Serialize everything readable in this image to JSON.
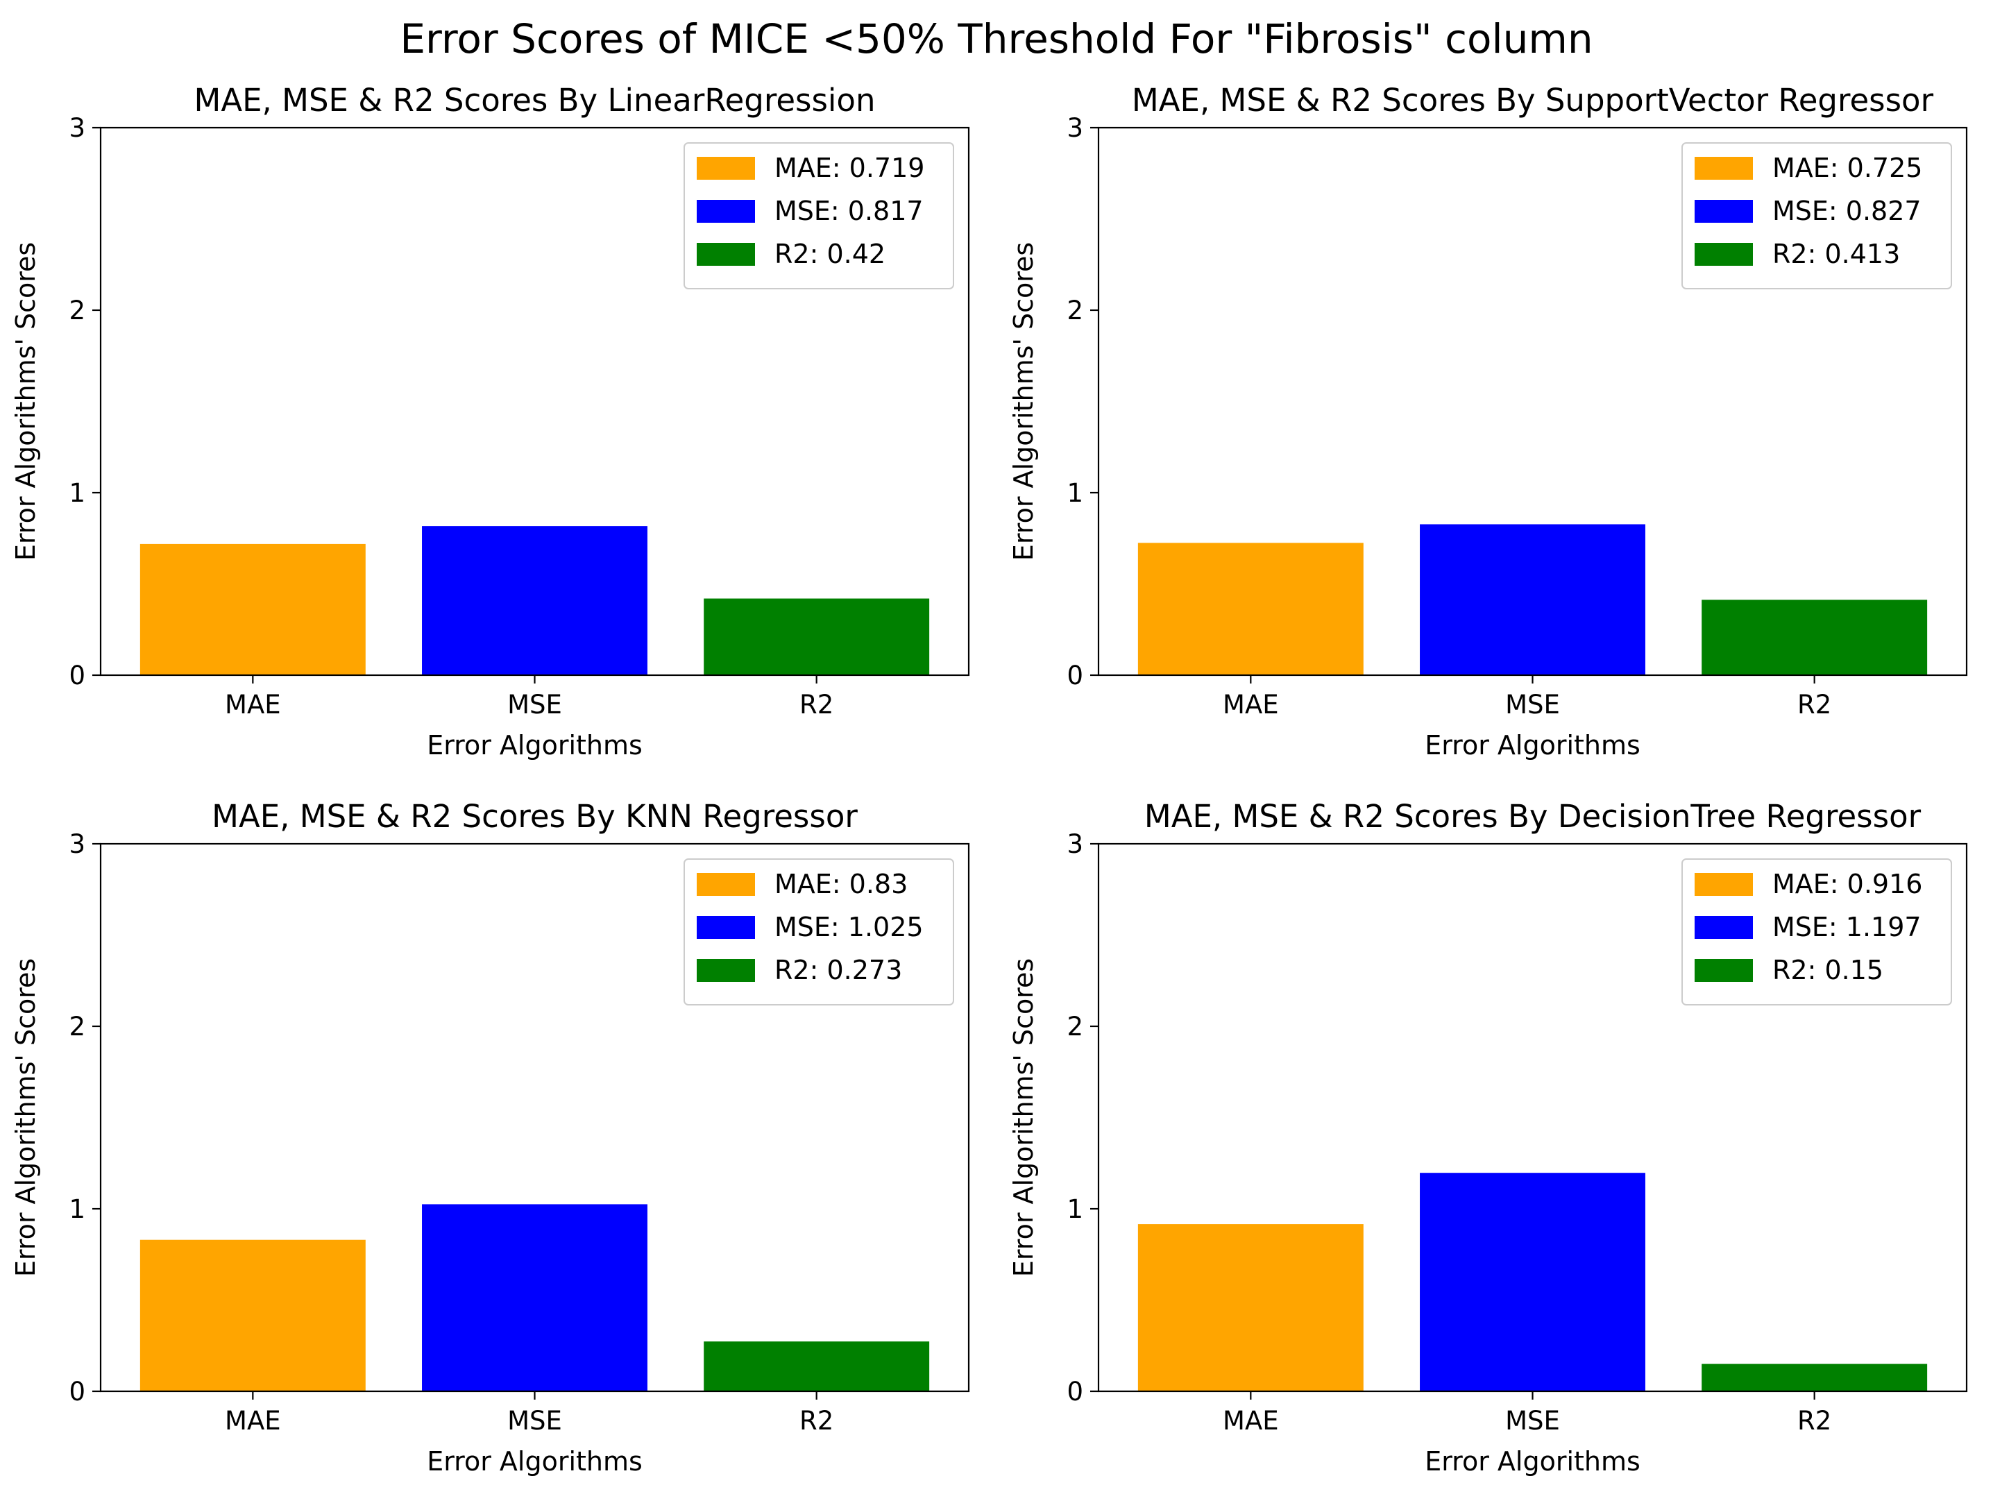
{
  "figure": {
    "title": "Error Scores of MICE <50% Threshold For \"Fibrosis\" column"
  },
  "colors": {
    "MAE": "#ffa500",
    "MSE": "#0000ff",
    "R2": "#008000"
  },
  "chart_data": [
    {
      "type": "bar",
      "title": "MAE, MSE & R2 Scores By LinearRegression",
      "xlabel": "Error Algorithms",
      "ylabel": "Error Algorithms' Scores",
      "categories": [
        "MAE",
        "MSE",
        "R2"
      ],
      "values": [
        0.719,
        0.817,
        0.42
      ],
      "ylim": [
        0,
        3
      ],
      "yticks": [
        "0",
        "1",
        "2",
        "3"
      ],
      "legend": [
        "MAE: 0.719",
        "MSE: 0.817",
        "R2: 0.42"
      ],
      "legend_position": "top-right",
      "grid": false
    },
    {
      "type": "bar",
      "title": "MAE, MSE & R2 Scores By SupportVector Regressor",
      "xlabel": "Error Algorithms",
      "ylabel": "Error Algorithms' Scores",
      "categories": [
        "MAE",
        "MSE",
        "R2"
      ],
      "values": [
        0.725,
        0.827,
        0.413
      ],
      "ylim": [
        0,
        3
      ],
      "yticks": [
        "0",
        "1",
        "2",
        "3"
      ],
      "legend": [
        "MAE: 0.725",
        "MSE: 0.827",
        "R2: 0.413"
      ],
      "legend_position": "top-right",
      "grid": false
    },
    {
      "type": "bar",
      "title": "MAE, MSE & R2 Scores By KNN Regressor",
      "xlabel": "Error Algorithms",
      "ylabel": "Error Algorithms' Scores",
      "categories": [
        "MAE",
        "MSE",
        "R2"
      ],
      "values": [
        0.83,
        1.025,
        0.273
      ],
      "ylim": [
        0,
        3
      ],
      "yticks": [
        "0",
        "1",
        "2",
        "3"
      ],
      "legend": [
        "MAE: 0.83",
        "MSE: 1.025",
        "R2: 0.273"
      ],
      "legend_position": "top-right",
      "grid": false
    },
    {
      "type": "bar",
      "title": "MAE, MSE & R2 Scores By DecisionTree Regressor",
      "xlabel": "Error Algorithms",
      "ylabel": "Error Algorithms' Scores",
      "categories": [
        "MAE",
        "MSE",
        "R2"
      ],
      "values": [
        0.916,
        1.197,
        0.15
      ],
      "ylim": [
        0,
        3
      ],
      "yticks": [
        "0",
        "1",
        "2",
        "3"
      ],
      "legend": [
        "MAE: 0.916",
        "MSE: 1.197",
        "R2: 0.15"
      ],
      "legend_position": "top-right",
      "grid": false
    }
  ]
}
